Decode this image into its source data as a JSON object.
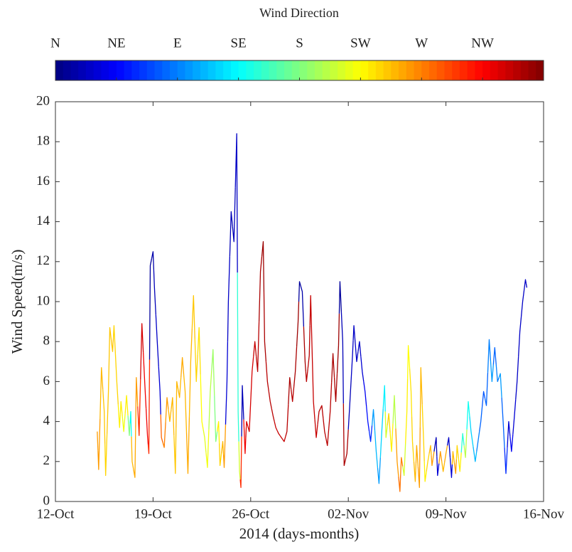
{
  "chart_data": {
    "type": "line",
    "xlabel": "2014  (days-months)",
    "ylabel": "Wind Speed(m/s)",
    "xlim": [
      285,
      320
    ],
    "xticks": [
      {
        "value": 285,
        "label": "12-Oct"
      },
      {
        "value": 292,
        "label": "19-Oct"
      },
      {
        "value": 299,
        "label": "26-Oct"
      },
      {
        "value": 306,
        "label": "02-Nov"
      },
      {
        "value": 313,
        "label": "09-Nov"
      },
      {
        "value": 320,
        "label": "16-Nov"
      }
    ],
    "ylim": [
      0,
      20
    ],
    "yticks": [
      0,
      2,
      4,
      6,
      8,
      10,
      12,
      14,
      16,
      18,
      20
    ],
    "grid": false,
    "colorbar": {
      "title": "Wind Direction",
      "colormap": "jet",
      "lim": [
        0,
        360
      ],
      "ticks": [
        {
          "value": 0,
          "label": "N"
        },
        {
          "value": 45,
          "label": "NE"
        },
        {
          "value": 90,
          "label": "E"
        },
        {
          "value": 135,
          "label": "SE"
        },
        {
          "value": 180,
          "label": "S"
        },
        {
          "value": 225,
          "label": "SW"
        },
        {
          "value": 270,
          "label": "W"
        },
        {
          "value": 315,
          "label": "NW"
        }
      ]
    },
    "x": [
      288.0,
      288.1,
      288.3,
      288.5,
      288.6,
      288.8,
      288.9,
      289.1,
      289.2,
      289.4,
      289.6,
      289.7,
      289.9,
      290.1,
      290.3,
      290.4,
      290.5,
      290.7,
      290.8,
      291.0,
      291.2,
      291.4,
      291.6,
      291.7,
      291.8,
      292.0,
      292.1,
      292.3,
      292.5,
      292.6,
      292.8,
      293.0,
      293.2,
      293.4,
      293.6,
      293.7,
      293.9,
      294.1,
      294.3,
      294.5,
      294.7,
      294.9,
      295.1,
      295.3,
      295.5,
      295.7,
      295.9,
      296.1,
      296.3,
      296.5,
      296.7,
      296.8,
      297.0,
      297.1,
      297.3,
      297.4,
      297.6,
      297.8,
      298.0,
      298.1,
      298.2,
      298.3,
      298.4,
      298.6,
      298.7,
      298.9,
      299.1,
      299.3,
      299.5,
      299.7,
      299.9,
      300.0,
      300.2,
      300.4,
      300.6,
      300.8,
      301.0,
      301.2,
      301.4,
      301.6,
      301.8,
      302.0,
      302.2,
      302.4,
      302.5,
      302.7,
      302.9,
      303.0,
      303.2,
      303.3,
      303.5,
      303.7,
      303.9,
      304.1,
      304.3,
      304.5,
      304.7,
      304.9,
      305.1,
      305.3,
      305.4,
      305.6,
      305.7,
      305.9,
      306.1,
      306.3,
      306.4,
      306.6,
      306.8,
      307.0,
      307.2,
      307.4,
      307.6,
      307.8,
      308.0,
      308.2,
      308.4,
      308.6,
      308.7,
      308.9,
      309.1,
      309.3,
      309.5,
      309.7,
      309.8,
      310.0,
      310.2,
      310.3,
      310.5,
      310.6,
      310.8,
      310.9,
      311.1,
      311.2,
      311.4,
      311.5,
      311.7,
      311.9,
      312.0,
      312.3,
      312.4,
      312.6,
      312.8,
      313.0,
      313.2,
      313.4,
      313.5,
      313.7,
      313.8,
      314.0,
      314.2,
      314.4,
      314.6,
      314.8,
      315.1,
      315.3,
      315.5,
      315.7,
      315.9,
      316.1,
      316.3,
      316.5,
      316.7,
      316.9,
      317.1,
      317.3,
      317.5,
      317.7,
      317.9,
      318.1,
      318.3,
      318.5,
      318.7,
      318.8
    ],
    "series": [
      {
        "name": "Wind Speed",
        "values": [
          3.5,
          1.6,
          6.7,
          4.5,
          1.3,
          5.5,
          8.7,
          7.5,
          8.8,
          6,
          3.7,
          5,
          3.5,
          5.3,
          3.3,
          4.5,
          2,
          1.2,
          6.2,
          3.3,
          8.9,
          6,
          3.3,
          2.4,
          11.8,
          12.5,
          10.7,
          8,
          5.5,
          3.2,
          2.7,
          5.2,
          4,
          5.2,
          1.4,
          6,
          5.2,
          7.2,
          5.5,
          1.4,
          7,
          10.3,
          6,
          8.7,
          4,
          3.2,
          1.7,
          5.5,
          7.6,
          3,
          4,
          1.8,
          3,
          1.7,
          6,
          10,
          14.5,
          13,
          18.4,
          4.5,
          1.5,
          0.7,
          5.8,
          2.4,
          4,
          3.5,
          6.5,
          8,
          6.5,
          11.5,
          13,
          8,
          6,
          5,
          4.3,
          3.7,
          3.4,
          3.2,
          3,
          3.5,
          6.2,
          5,
          6.5,
          9,
          11,
          10.5,
          7,
          6,
          7.3,
          10.3,
          5,
          3.2,
          4.5,
          4.8,
          3.5,
          2.8,
          4.5,
          7.4,
          5,
          7.8,
          11,
          8,
          1.8,
          2.4,
          4.8,
          7.3,
          8.8,
          7,
          8,
          6.5,
          5.5,
          4,
          3,
          4.6,
          2.5,
          0.9,
          3.5,
          5.8,
          3.2,
          4.4,
          2.5,
          5.3,
          2,
          0.5,
          2.2,
          1.3,
          4.5,
          7.8,
          5.5,
          3,
          1,
          2.8,
          0.7,
          6.7,
          3,
          1,
          2,
          2.8,
          1.8,
          3.2,
          1.3,
          2.5,
          1.5,
          2.4,
          3.2,
          1.2,
          2.5,
          1.4,
          2.8,
          1.5,
          3.4,
          2.2,
          5,
          3.5,
          2,
          3,
          4,
          5.5,
          4.8,
          8.1,
          6,
          7.7,
          6,
          6.4,
          4,
          1.4,
          4,
          2.5,
          4.2,
          6,
          8.5,
          10,
          11.1,
          10.7
        ],
        "direction": [
          260,
          260,
          250,
          245,
          240,
          245,
          245,
          245,
          240,
          240,
          230,
          230,
          220,
          230,
          180,
          140,
          250,
          255,
          260,
          300,
          330,
          320,
          320,
          300,
          10,
          15,
          20,
          25,
          30,
          280,
          270,
          260,
          250,
          250,
          245,
          250,
          250,
          255,
          250,
          255,
          250,
          245,
          240,
          235,
          225,
          215,
          220,
          200,
          190,
          180,
          230,
          240,
          250,
          260,
          30,
          25,
          20,
          20,
          25,
          150,
          210,
          300,
          20,
          320,
          330,
          330,
          330,
          335,
          340,
          345,
          350,
          345,
          340,
          340,
          340,
          335,
          335,
          335,
          335,
          340,
          345,
          340,
          345,
          350,
          10,
          15,
          345,
          340,
          340,
          335,
          335,
          335,
          340,
          340,
          340,
          340,
          340,
          345,
          345,
          350,
          10,
          20,
          345,
          345,
          20,
          25,
          25,
          25,
          25,
          30,
          40,
          50,
          60,
          100,
          110,
          100,
          120,
          130,
          210,
          240,
          230,
          200,
          260,
          275,
          270,
          210,
          230,
          225,
          235,
          240,
          250,
          255,
          260,
          250,
          240,
          230,
          240,
          250,
          260,
          20,
          30,
          260,
          250,
          255,
          25,
          30,
          250,
          260,
          240,
          230,
          150,
          200,
          140,
          120,
          110,
          90,
          80,
          75,
          80,
          90,
          100,
          80,
          90,
          100,
          80,
          60,
          30,
          40,
          30,
          25,
          25,
          25,
          25,
          25
        ]
      }
    ]
  }
}
